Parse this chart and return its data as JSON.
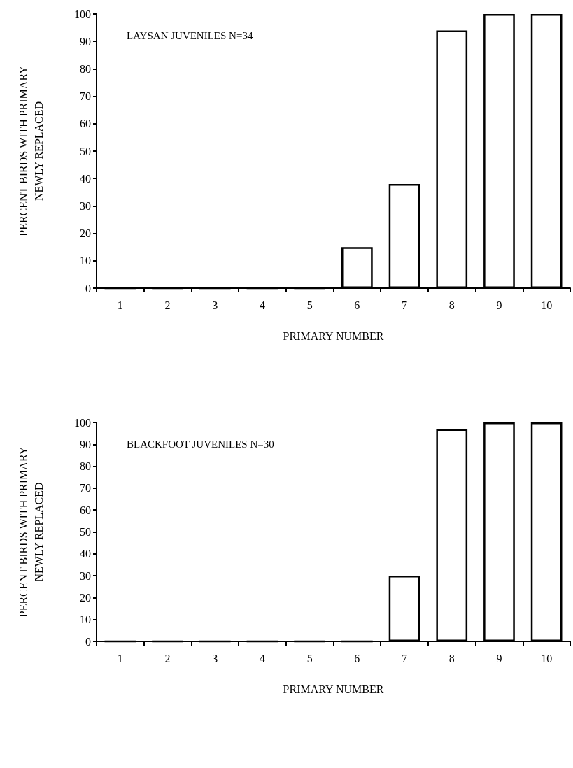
{
  "chart_data": [
    {
      "type": "bar",
      "title": "LAYSAN JUVENILES N=34",
      "xlabel": "PRIMARY NUMBER",
      "ylabel": "PERCENT BIRDS WITH PRIMARY\nNEWLY REPLACED",
      "categories": [
        "1",
        "2",
        "3",
        "4",
        "5",
        "6",
        "7",
        "8",
        "9",
        "10"
      ],
      "values": [
        0,
        0,
        0,
        0,
        0,
        15,
        38,
        94,
        100,
        100
      ],
      "colors": [
        "#000000",
        "#000000",
        "#000000",
        "#000000",
        "#000000",
        "#ffffff",
        "#ffffff",
        "#ffffff",
        "#ffffff",
        "#ffffff"
      ],
      "ylim": [
        0,
        100
      ],
      "yticks": [
        0,
        10,
        20,
        30,
        40,
        50,
        60,
        70,
        80,
        90,
        100
      ],
      "grid": false
    },
    {
      "type": "bar",
      "title": "BLACKFOOT JUVENILES N=30",
      "xlabel": "PRIMARY NUMBER",
      "ylabel": "PERCENT BIRDS WITH PRIMARY\nNEWLY REPLACED",
      "categories": [
        "1",
        "2",
        "3",
        "4",
        "5",
        "6",
        "7",
        "8",
        "9",
        "10"
      ],
      "values": [
        0,
        0,
        0,
        0,
        0,
        0,
        30,
        97,
        100,
        100
      ],
      "colors": [
        "#000000",
        "#000000",
        "#000000",
        "#000000",
        "#000000",
        "#000000",
        "#ffffff",
        "#ffffff",
        "#ffffff",
        "#ffffff"
      ],
      "ylim": [
        0,
        100
      ],
      "yticks": [
        0,
        10,
        20,
        30,
        40,
        50,
        60,
        70,
        80,
        90,
        100
      ],
      "grid": false
    }
  ]
}
